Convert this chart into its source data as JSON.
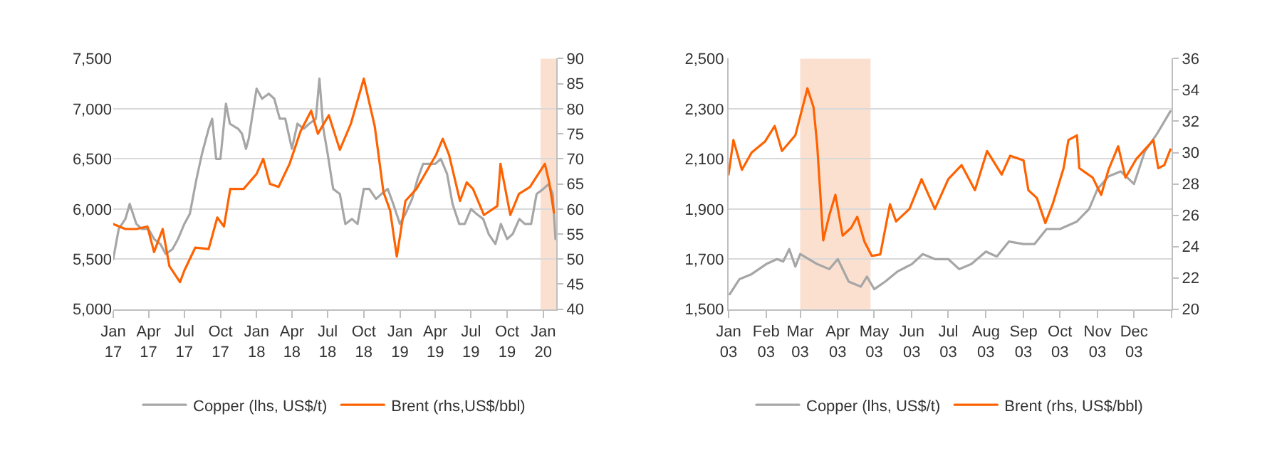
{
  "chart_data": [
    {
      "type": "line",
      "xlim": [
        "2017-01-01",
        "2020-02-03"
      ],
      "xticks": [
        {
          "value": "2017-01-01",
          "label": "Jan\n17"
        },
        {
          "value": "2017-04-01",
          "label": "Apr\n17"
        },
        {
          "value": "2017-07-01",
          "label": "Jul\n17"
        },
        {
          "value": "2017-10-01",
          "label": "Oct\n17"
        },
        {
          "value": "2018-01-01",
          "label": "Jan\n18"
        },
        {
          "value": "2018-04-01",
          "label": "Apr\n18"
        },
        {
          "value": "2018-07-01",
          "label": "Jul\n18"
        },
        {
          "value": "2018-10-01",
          "label": "Oct\n18"
        },
        {
          "value": "2019-01-01",
          "label": "Jan\n19"
        },
        {
          "value": "2019-04-01",
          "label": "Apr\n19"
        },
        {
          "value": "2019-07-01",
          "label": "Jul\n19"
        },
        {
          "value": "2019-10-01",
          "label": "Oct\n19"
        },
        {
          "value": "2020-01-01",
          "label": "Jan\n20"
        }
      ],
      "ylim": [
        5000,
        7500
      ],
      "yticks": [
        {
          "value": 5000,
          "label": "5,000"
        },
        {
          "value": 5500,
          "label": "5,500"
        },
        {
          "value": 6000,
          "label": "6,000"
        },
        {
          "value": 6500,
          "label": "6,500"
        },
        {
          "value": 7000,
          "label": "7,000"
        },
        {
          "value": 7500,
          "label": "7,500"
        }
      ],
      "y2lim": [
        40,
        90
      ],
      "y2ticks": [
        40,
        45,
        50,
        55,
        60,
        65,
        70,
        75,
        80,
        85,
        90
      ],
      "grid": "y",
      "legend": "bottom",
      "bands": [
        {
          "axis": "x",
          "from": "2019-12-25",
          "to": "2020-02-03",
          "color": "#fbe0d0"
        }
      ],
      "series": [
        {
          "name": "Copper (lhs, US$/t)",
          "color": "#a6a6a6",
          "x": [
            "2017-01-01",
            "2017-01-15",
            "2017-02-01",
            "2017-02-12",
            "2017-03-01",
            "2017-03-15",
            "2017-04-01",
            "2017-04-15",
            "2017-05-01",
            "2017-05-15",
            "2017-06-01",
            "2017-06-15",
            "2017-07-01",
            "2017-07-15",
            "2017-08-01",
            "2017-08-15",
            "2017-09-01",
            "2017-09-10",
            "2017-09-20",
            "2017-10-01",
            "2017-10-15",
            "2017-10-25",
            "2017-11-15",
            "2017-11-25",
            "2017-12-05",
            "2017-12-12",
            "2017-12-20",
            "2018-01-01",
            "2018-01-15",
            "2018-02-01",
            "2018-02-15",
            "2018-03-01",
            "2018-03-15",
            "2018-04-01",
            "2018-04-15",
            "2018-05-01",
            "2018-05-15",
            "2018-06-01",
            "2018-06-10",
            "2018-06-20",
            "2018-07-01",
            "2018-07-15",
            "2018-08-01",
            "2018-08-15",
            "2018-09-01",
            "2018-09-15",
            "2018-10-01",
            "2018-10-15",
            "2018-11-01",
            "2018-11-15",
            "2018-12-01",
            "2018-12-15",
            "2019-01-01",
            "2019-01-15",
            "2019-02-01",
            "2019-02-15",
            "2019-03-01",
            "2019-03-15",
            "2019-04-01",
            "2019-04-15",
            "2019-05-01",
            "2019-05-15",
            "2019-06-01",
            "2019-06-15",
            "2019-07-01",
            "2019-07-15",
            "2019-08-01",
            "2019-08-15",
            "2019-09-01",
            "2019-09-15",
            "2019-10-01",
            "2019-10-15",
            "2019-11-01",
            "2019-11-15",
            "2019-12-01",
            "2019-12-15",
            "2020-01-01",
            "2020-01-15",
            "2020-01-25",
            "2020-02-01"
          ],
          "values": [
            5500,
            5800,
            5900,
            6050,
            5850,
            5800,
            5800,
            5700,
            5650,
            5550,
            5600,
            5700,
            5850,
            5950,
            6300,
            6550,
            6800,
            6900,
            6500,
            6500,
            7050,
            6850,
            6800,
            6750,
            6600,
            6700,
            6900,
            7200,
            7100,
            7150,
            7100,
            6900,
            6900,
            6600,
            6850,
            6800,
            6850,
            6900,
            7300,
            6800,
            6550,
            6200,
            6150,
            5850,
            5900,
            5850,
            6200,
            6200,
            6100,
            6150,
            6200,
            6050,
            5850,
            5950,
            6100,
            6300,
            6450,
            6450,
            6450,
            6500,
            6350,
            6050,
            5850,
            5850,
            6000,
            5950,
            5900,
            5750,
            5650,
            5850,
            5700,
            5750,
            5900,
            5850,
            5850,
            6150,
            6200,
            6250,
            6150,
            5700
          ]
        },
        {
          "name": "Brent (rhs,US$/bbl)",
          "color": "#ff6200",
          "axis": "y2",
          "x": [
            "2017-01-01",
            "2017-02-01",
            "2017-03-01",
            "2017-03-29",
            "2017-04-15",
            "2017-05-07",
            "2017-05-24",
            "2017-06-20",
            "2017-07-01",
            "2017-07-29",
            "2017-09-01",
            "2017-09-23",
            "2017-10-10",
            "2017-10-26",
            "2017-11-29",
            "2018-01-01",
            "2018-01-18",
            "2018-02-04",
            "2018-02-26",
            "2018-03-26",
            "2018-04-23",
            "2018-05-20",
            "2018-06-06",
            "2018-07-04",
            "2018-08-01",
            "2018-08-29",
            "2018-10-01",
            "2018-10-29",
            "2018-11-20",
            "2018-12-07",
            "2018-12-24",
            "2019-01-15",
            "2019-02-12",
            "2019-03-06",
            "2019-04-03",
            "2019-04-20",
            "2019-05-06",
            "2019-06-03",
            "2019-06-20",
            "2019-07-06",
            "2019-08-03",
            "2019-09-06",
            "2019-09-14",
            "2019-10-09",
            "2019-10-31",
            "2019-11-28",
            "2020-01-05",
            "2020-01-16",
            "2020-01-28"
          ],
          "values": [
            57,
            56,
            56,
            56.5,
            51.4,
            56,
            48.6,
            45.4,
            47.7,
            52.3,
            52,
            58.3,
            56.5,
            64,
            64,
            67,
            70,
            65,
            64.4,
            69,
            75.5,
            79.6,
            75,
            78.7,
            71.8,
            77,
            86,
            76.4,
            63.4,
            59.7,
            50.5,
            61.6,
            64,
            67,
            70.8,
            74,
            70.8,
            61.6,
            65.3,
            64,
            58.8,
            60.6,
            69,
            58.8,
            63,
            64.4,
            69,
            65.3,
            59.3
          ]
        }
      ]
    },
    {
      "type": "line",
      "xlim": [
        "2003-01-01",
        "2004-01-01"
      ],
      "xticks": [
        {
          "value": "2003-01-01",
          "label": "Jan\n03"
        },
        {
          "value": "2003-02-01",
          "label": "Feb\n03"
        },
        {
          "value": "2003-03-01",
          "label": "Mar\n03"
        },
        {
          "value": "2003-04-01",
          "label": "Apr\n03"
        },
        {
          "value": "2003-05-01",
          "label": "May\n03"
        },
        {
          "value": "2003-06-01",
          "label": "Jun\n03"
        },
        {
          "value": "2003-07-01",
          "label": "Jul\n03"
        },
        {
          "value": "2003-08-01",
          "label": "Aug\n03"
        },
        {
          "value": "2003-09-01",
          "label": "Sep\n03"
        },
        {
          "value": "2003-10-01",
          "label": "Oct\n03"
        },
        {
          "value": "2003-11-01",
          "label": "Nov\n03"
        },
        {
          "value": "2003-12-01",
          "label": "Dec\n03"
        },
        {
          "value": "2004-01-01",
          "label": null
        }
      ],
      "ylim": [
        1500,
        2500
      ],
      "yticks": [
        {
          "value": 1500,
          "label": "1,500"
        },
        {
          "value": 1700,
          "label": "1,700"
        },
        {
          "value": 1900,
          "label": "1,900"
        },
        {
          "value": 2100,
          "label": "2,100"
        },
        {
          "value": 2300,
          "label": "2,300"
        },
        {
          "value": 2500,
          "label": "2,500"
        }
      ],
      "y2lim": [
        20,
        36
      ],
      "y2ticks": [
        20,
        22,
        24,
        26,
        28,
        30,
        32,
        34,
        36
      ],
      "grid": "y",
      "legend": "bottom",
      "bands": [
        {
          "axis": "x",
          "from": "2003-03-01",
          "to": "2003-04-28",
          "color": "#fbe0d0"
        }
      ],
      "series": [
        {
          "name": "Copper (lhs, US$/t)",
          "color": "#a6a6a6",
          "x": [
            "2003-01-02",
            "2003-01-10",
            "2003-01-20",
            "2003-02-01",
            "2003-02-10",
            "2003-02-15",
            "2003-02-20",
            "2003-02-25",
            "2003-03-01",
            "2003-03-15",
            "2003-03-25",
            "2003-04-01",
            "2003-04-10",
            "2003-04-20",
            "2003-04-25",
            "2003-05-01",
            "2003-05-10",
            "2003-05-20",
            "2003-06-01",
            "2003-06-10",
            "2003-06-20",
            "2003-07-01",
            "2003-07-10",
            "2003-07-20",
            "2003-08-01",
            "2003-08-10",
            "2003-08-20",
            "2003-09-01",
            "2003-09-10",
            "2003-09-20",
            "2003-10-01",
            "2003-10-15",
            "2003-10-25",
            "2003-11-01",
            "2003-11-10",
            "2003-11-20",
            "2003-12-01",
            "2003-12-10",
            "2003-12-20",
            "2003-12-31"
          ],
          "values": [
            1560,
            1620,
            1640,
            1680,
            1700,
            1690,
            1740,
            1670,
            1720,
            1680,
            1660,
            1700,
            1610,
            1590,
            1630,
            1580,
            1610,
            1650,
            1680,
            1720,
            1700,
            1700,
            1660,
            1680,
            1730,
            1710,
            1770,
            1760,
            1760,
            1820,
            1820,
            1850,
            1900,
            1980,
            2030,
            2050,
            2000,
            2130,
            2200,
            2290
          ]
        },
        {
          "name": "Brent (rhs, US$/bbl)",
          "color": "#ff6200",
          "axis": "y2",
          "x": [
            "2003-01-01",
            "2003-01-05",
            "2003-01-12",
            "2003-01-20",
            "2003-01-31",
            "2003-02-08",
            "2003-02-14",
            "2003-02-25",
            "2003-03-07",
            "2003-03-12",
            "2003-03-15",
            "2003-03-20",
            "2003-03-25",
            "2003-03-30",
            "2003-04-05",
            "2003-04-12",
            "2003-04-17",
            "2003-04-23",
            "2003-04-29",
            "2003-05-06",
            "2003-05-14",
            "2003-05-19",
            "2003-05-30",
            "2003-06-09",
            "2003-06-20",
            "2003-07-01",
            "2003-07-12",
            "2003-07-23",
            "2003-08-02",
            "2003-08-14",
            "2003-08-21",
            "2003-09-01",
            "2003-09-05",
            "2003-09-12",
            "2003-09-19",
            "2003-09-25",
            "2003-10-04",
            "2003-10-08",
            "2003-10-15",
            "2003-10-17",
            "2003-10-28",
            "2003-11-04",
            "2003-11-10",
            "2003-11-18",
            "2003-11-24",
            "2003-12-03",
            "2003-12-17",
            "2003-12-21",
            "2003-12-26",
            "2003-12-31"
          ],
          "values": [
            28.6,
            30.8,
            28.9,
            30,
            30.7,
            31.7,
            30.1,
            31.1,
            34.1,
            32.9,
            30.5,
            24.4,
            26,
            27.3,
            24.7,
            25.2,
            25.9,
            24.3,
            23.4,
            23.5,
            26.7,
            25.6,
            26.4,
            28.3,
            26.4,
            28.3,
            29.2,
            27.6,
            30.1,
            28.6,
            29.8,
            29.5,
            27.6,
            27.1,
            25.5,
            26.7,
            29,
            30.8,
            31.1,
            29,
            28.4,
            27.3,
            28.9,
            30.4,
            28.4,
            29.6,
            30.8,
            29,
            29.2,
            30.2
          ]
        }
      ]
    }
  ]
}
